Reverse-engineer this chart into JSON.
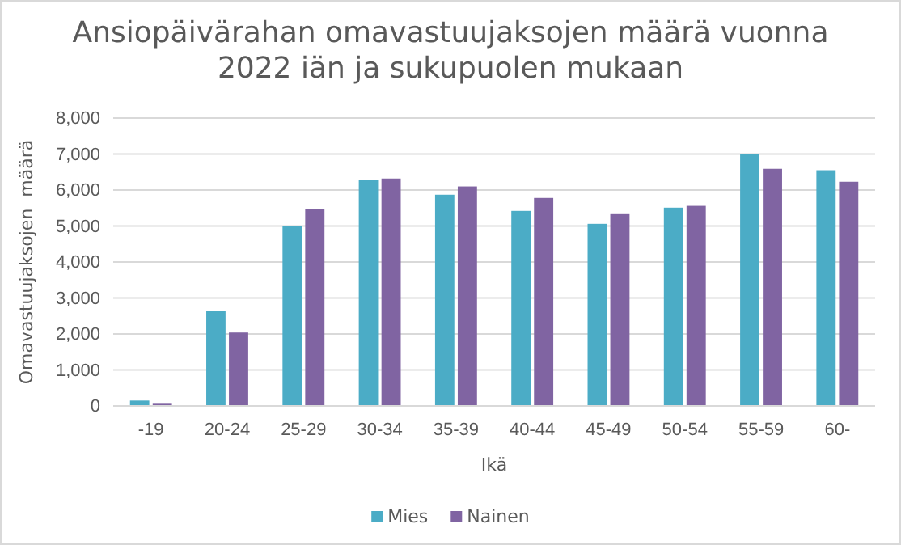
{
  "chart_data": {
    "type": "bar",
    "title": "Ansiopäivärahan omavastuujaksojen määrä vuonna 2022 iän ja sukupuolen mukaan",
    "xlabel": "Ikä",
    "ylabel": "Omavastuujaksojen  määrä",
    "categories": [
      "-19",
      "20-24",
      "25-29",
      "30-34",
      "35-39",
      "40-44",
      "45-49",
      "50-54",
      "55-59",
      "60-"
    ],
    "series": [
      {
        "name": "Mies",
        "color": "#4bacc6",
        "values": [
          150,
          2630,
          5010,
          6280,
          5870,
          5420,
          5060,
          5510,
          7000,
          6550
        ]
      },
      {
        "name": "Nainen",
        "color": "#8064a2",
        "values": [
          60,
          2040,
          5470,
          6320,
          6100,
          5780,
          5330,
          5560,
          6590,
          6230
        ]
      }
    ],
    "ylim": [
      0,
      8000
    ],
    "yticks": [
      {
        "value": 0,
        "label": "0"
      },
      {
        "value": 1000,
        "label": "1,000"
      },
      {
        "value": 2000,
        "label": "2,000"
      },
      {
        "value": 3000,
        "label": "3,000"
      },
      {
        "value": 4000,
        "label": "4,000"
      },
      {
        "value": 5000,
        "label": "5,000"
      },
      {
        "value": 6000,
        "label": "6,000"
      },
      {
        "value": 7000,
        "label": "7,000"
      },
      {
        "value": 8000,
        "label": "8,000"
      }
    ],
    "grid": "y",
    "legend": "bottom"
  }
}
